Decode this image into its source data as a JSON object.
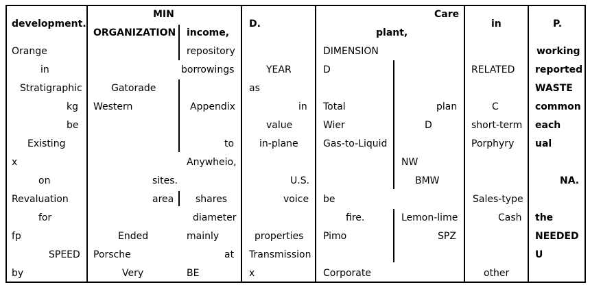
{
  "header": {
    "c1": "development.",
    "c2_top": "MIN",
    "c2": "ORGANIZATION",
    "c3": "income,",
    "c4": "D.",
    "c5_top": "Care",
    "c5": "plant,",
    "c6": "in",
    "c7": "P."
  },
  "col1": [
    "Orange",
    "in",
    "Stratigraphic",
    "kg",
    "be",
    "Existing",
    "x",
    "on",
    "Revaluation",
    "for",
    "fp",
    "SPEED",
    "by"
  ],
  "col2": [
    "Gatorade",
    "Western",
    "sites.",
    "area",
    "Ended",
    "Porsche",
    "Very"
  ],
  "col3": [
    "repository",
    "borrowings",
    "Appendix",
    "to",
    "Anywheio,",
    "shares",
    "diameter",
    "mainly",
    "at",
    "BE"
  ],
  "col4": [
    "YEAR",
    "as",
    "in",
    "value",
    "in-plane",
    "U.S.",
    "voice",
    "properties",
    "Transmission",
    "x"
  ],
  "col5": [
    "DIMENSION",
    "D",
    "Total",
    "plan",
    "Wier",
    "D",
    "Gas-to-Liquid",
    "NW",
    "BMW",
    "be",
    "fire.",
    "Lemon-lime",
    "Pimo",
    "SPZ",
    "Corporate"
  ],
  "col6": [
    "RELATED",
    "C",
    "short-term",
    "Porphyry",
    "Sales-type",
    "Cash",
    "other"
  ],
  "col7": [
    "working",
    "reported",
    "WASTE",
    "common",
    "each",
    "ual",
    "NA.",
    "the",
    "NEEDED",
    "U"
  ]
}
